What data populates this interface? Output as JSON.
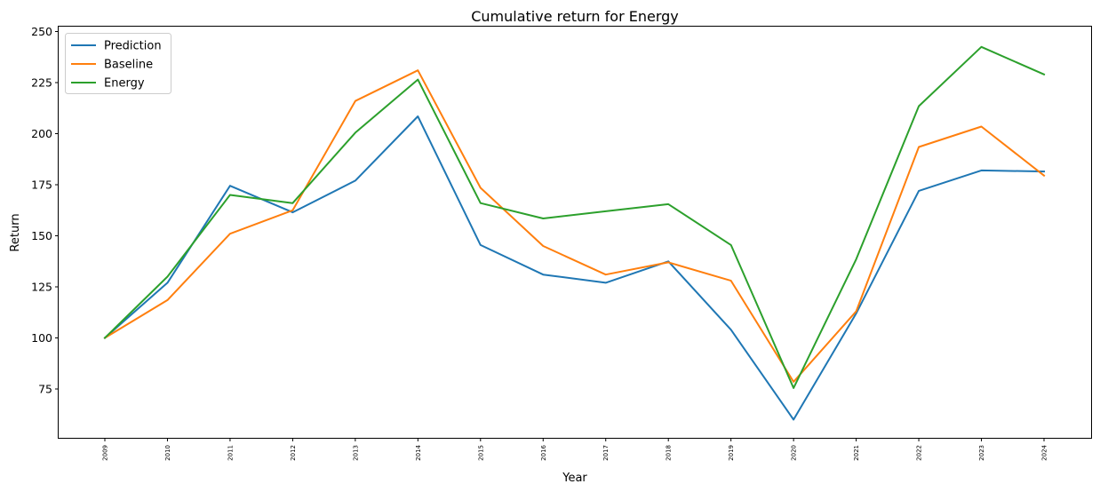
{
  "chart_data": {
    "type": "line",
    "title": "Cumulative return for Energy",
    "xlabel": "Year",
    "ylabel": "Return",
    "x": [
      "2009",
      "2010",
      "2011",
      "2012",
      "2013",
      "2014",
      "2015",
      "2016",
      "2017",
      "2018",
      "2019",
      "2020",
      "2021",
      "2022",
      "2023",
      "2024"
    ],
    "ylim": [
      50,
      250
    ],
    "yticks": [
      75,
      100,
      125,
      150,
      175,
      200,
      225,
      250
    ],
    "grid": false,
    "legend_position": "upper left",
    "series": [
      {
        "name": "Prediction",
        "color": "#1f77b4",
        "values": [
          100,
          127,
          174.5,
          161.5,
          177,
          208.5,
          145.5,
          131,
          127,
          137.5,
          104,
          60,
          112,
          172,
          182,
          181.5
        ]
      },
      {
        "name": "Baseline",
        "color": "#ff7f0e",
        "values": [
          100,
          118.5,
          151,
          162.5,
          216,
          231,
          173.5,
          145,
          131,
          137,
          128,
          78.5,
          113,
          193.5,
          203.5,
          179.5
        ]
      },
      {
        "name": "Energy",
        "color": "#2ca02c",
        "values": [
          100,
          130,
          170,
          166,
          200.5,
          226.5,
          166,
          158.5,
          162,
          165.5,
          145.5,
          75.5,
          138.5,
          213.5,
          242.5,
          229
        ]
      }
    ]
  }
}
